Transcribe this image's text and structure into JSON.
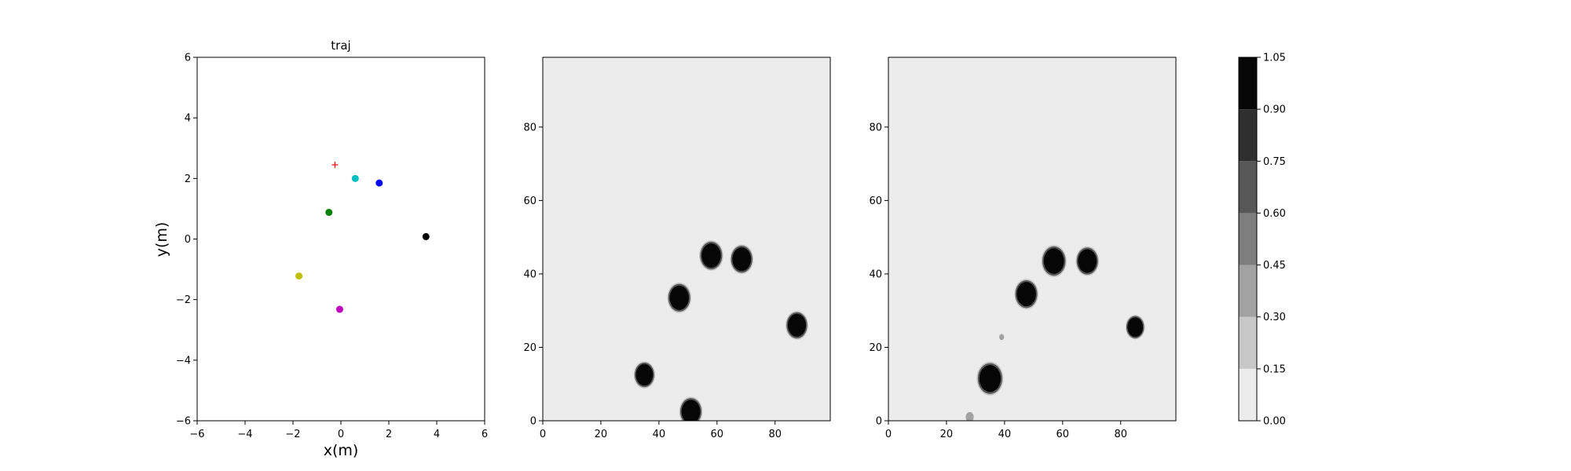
{
  "chart_data": [
    {
      "type": "scatter",
      "title": "traj",
      "xlabel": "x(m)",
      "ylabel": "y(m)",
      "xlim": [
        -6,
        6
      ],
      "ylim": [
        -6,
        6
      ],
      "xticks": [
        "−6",
        "−4",
        "−2",
        "0",
        "2",
        "4",
        "6"
      ],
      "yticks": [
        "−6",
        "−4",
        "−2",
        "0",
        "2",
        "4",
        "6"
      ],
      "grid": false,
      "points": [
        {
          "x": -0.25,
          "y": 2.45,
          "color": "#ff0000",
          "marker": "plus"
        },
        {
          "x": 0.6,
          "y": 2.0,
          "color": "#00bfbf",
          "marker": "circle"
        },
        {
          "x": 1.6,
          "y": 1.85,
          "color": "#0000ff",
          "marker": "circle"
        },
        {
          "x": -0.5,
          "y": 0.88,
          "color": "#008000",
          "marker": "circle"
        },
        {
          "x": 3.55,
          "y": 0.08,
          "color": "#000000",
          "marker": "circle"
        },
        {
          "x": -1.75,
          "y": -1.22,
          "color": "#bfbf00",
          "marker": "circle"
        },
        {
          "x": -0.05,
          "y": -2.32,
          "color": "#bf00bf",
          "marker": "circle"
        }
      ]
    },
    {
      "type": "heatmap",
      "title": "",
      "xlim": [
        0,
        99
      ],
      "ylim": [
        0,
        99
      ],
      "xticks": [
        0,
        20,
        40,
        60,
        80
      ],
      "yticks": [
        0,
        20,
        40,
        60,
        80
      ],
      "background_value": 0.05,
      "blobs": [
        {
          "cx": 35,
          "cy": 12.5,
          "r": 3.2,
          "value": 1.0
        },
        {
          "cx": 51,
          "cy": 2.5,
          "r": 3.5,
          "value": 1.0
        },
        {
          "cx": 47,
          "cy": 33.5,
          "r": 3.6,
          "value": 1.0
        },
        {
          "cx": 58,
          "cy": 45,
          "r": 3.6,
          "value": 1.0
        },
        {
          "cx": 68.5,
          "cy": 44,
          "r": 3.5,
          "value": 1.0
        },
        {
          "cx": 87.5,
          "cy": 26,
          "r": 3.4,
          "value": 1.0
        }
      ]
    },
    {
      "type": "heatmap",
      "title": "",
      "xlim": [
        0,
        99
      ],
      "ylim": [
        0,
        99
      ],
      "xticks": [
        0,
        20,
        40,
        60,
        80
      ],
      "yticks": [
        0,
        20,
        40,
        60,
        80
      ],
      "background_value": 0.05,
      "blobs": [
        {
          "cx": 35,
          "cy": 11.5,
          "r": 4.0,
          "value": 1.0
        },
        {
          "cx": 47.5,
          "cy": 34.5,
          "r": 3.6,
          "value": 1.0
        },
        {
          "cx": 57,
          "cy": 43.5,
          "r": 3.8,
          "value": 1.0
        },
        {
          "cx": 68.5,
          "cy": 43.5,
          "r": 3.5,
          "value": 1.0
        },
        {
          "cx": 85,
          "cy": 25.5,
          "r": 2.9,
          "value": 1.0
        },
        {
          "cx": 39,
          "cy": 22.8,
          "r": 0.9,
          "value": 0.3
        },
        {
          "cx": 28,
          "cy": 1,
          "r": 1.5,
          "value": 0.3
        }
      ]
    }
  ],
  "colorbar": {
    "levels": [
      0.0,
      0.15,
      0.3,
      0.45,
      0.6,
      0.75,
      0.9,
      1.05
    ],
    "tick_labels": [
      "0.00",
      "0.15",
      "0.30",
      "0.45",
      "0.60",
      "0.75",
      "0.90",
      "1.05"
    ],
    "colors": [
      "#ececec",
      "#c8c8c8",
      "#a2a2a2",
      "#7e7e7e",
      "#575757",
      "#2f2f2f",
      "#060606"
    ]
  }
}
